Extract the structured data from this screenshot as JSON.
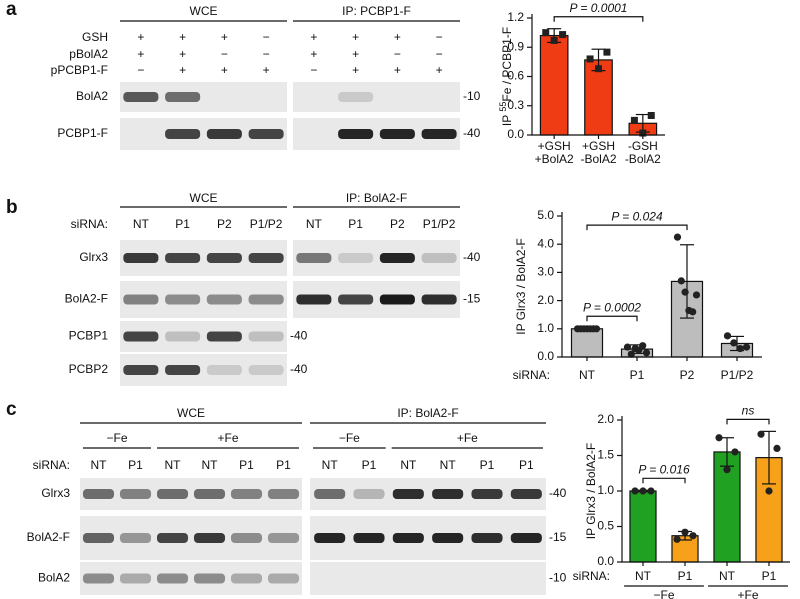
{
  "panels": [
    {
      "letter": "a",
      "headers": [
        "WCE",
        "IP: PCBP1-F"
      ],
      "condition_rows": [
        {
          "label": "GSH",
          "lanes": [
            "+",
            "+",
            "+",
            "−",
            "+",
            "+",
            "+",
            "−"
          ]
        },
        {
          "label": "pBolA2",
          "lanes": [
            "+",
            "+",
            "−",
            "−",
            "+",
            "+",
            "−",
            "−"
          ]
        },
        {
          "label": "pPCBP1-F",
          "lanes": [
            "−",
            "+",
            "+",
            "+",
            "−",
            "+",
            "+",
            "+"
          ]
        }
      ],
      "blots": [
        {
          "label": "BolA2",
          "marker": "-10"
        },
        {
          "label": "PCBP1-F",
          "marker": "-40"
        }
      ]
    },
    {
      "letter": "b",
      "headers": [
        "WCE",
        "IP: BolA2-F"
      ],
      "lane_label": "siRNA:",
      "lanes": [
        "NT",
        "P1",
        "P2",
        "P1/P2",
        "NT",
        "P1",
        "P2",
        "P1/P2"
      ],
      "blots": [
        {
          "label": "Glrx3",
          "marker": "-40"
        },
        {
          "label": "BolA2-F",
          "marker": "-15"
        },
        {
          "label": "PCBP1",
          "marker": "-40"
        },
        {
          "label": "PCBP2",
          "marker": "-40"
        }
      ]
    },
    {
      "letter": "c",
      "headers": [
        "WCE",
        "IP: BolA2-F"
      ],
      "subheaders": [
        "−Fe",
        "+Fe",
        "−Fe",
        "+Fe"
      ],
      "lane_label": "siRNA:",
      "lanes": [
        "NT",
        "P1",
        "NT",
        "NT",
        "P1",
        "P1",
        "NT",
        "P1",
        "NT",
        "NT",
        "P1",
        "P1"
      ],
      "blots": [
        {
          "label": "Glrx3",
          "marker": "-40"
        },
        {
          "label": "BolA2-F",
          "marker": "-15"
        },
        {
          "label": "BolA2",
          "marker": "-10"
        }
      ]
    }
  ],
  "chart_data": [
    {
      "type": "bar",
      "ylabel": {
        "prefix": "IP ",
        "superscript": "55",
        "suffix": "Fe / PCBP1-F"
      },
      "categories": [
        [
          "+GSH",
          "+BolA2"
        ],
        [
          "+GSH",
          "-BolA2"
        ],
        [
          "-GSH",
          "-BolA2"
        ]
      ],
      "values": [
        1.02,
        0.77,
        0.12
      ],
      "errors": [
        0.07,
        0.11,
        0.09
      ],
      "points": [
        [
          1.05,
          0.97,
          1.03
        ],
        [
          0.78,
          0.68,
          0.85
        ],
        [
          0.15,
          0.02,
          0.2
        ]
      ],
      "marker": "square",
      "color": "#f03c14",
      "ylim": [
        0,
        1.2
      ],
      "yticks": [
        {
          "value": 0,
          "label": "0.0"
        },
        0.3,
        0.6,
        0.9,
        1.2
      ],
      "annotations": [
        {
          "text": "P = 0.0001",
          "between": [
            0,
            2
          ]
        }
      ]
    },
    {
      "type": "bar",
      "ylabel": "IP Glrx3 / BolA2-F",
      "xlabel": "siRNA:",
      "categories": [
        "NT",
        "P1",
        "P2",
        "P1/P2"
      ],
      "values": [
        1.0,
        0.28,
        2.68,
        0.48
      ],
      "errors": [
        0.02,
        0.15,
        1.3,
        0.25
      ],
      "points": [
        [
          1.0,
          1.0,
          1.0,
          1.0,
          1.0,
          1.0,
          1.0
        ],
        [
          0.35,
          0.1,
          0.3,
          0.25,
          0.4,
          0.15
        ],
        [
          4.25,
          2.7,
          2.3,
          1.65,
          1.6,
          2.2
        ],
        [
          0.75,
          0.5,
          0.3,
          0.35
        ]
      ],
      "marker": "circle",
      "color": "#bdbdbd",
      "ylim": [
        0,
        5
      ],
      "yticks": [
        {
          "value": 0,
          "label": "0.0"
        },
        {
          "value": 1,
          "label": "1.0"
        },
        {
          "value": 2,
          "label": "2.0"
        },
        {
          "value": 3,
          "label": "3.0"
        },
        {
          "value": 4,
          "label": "4.0"
        },
        {
          "value": 5,
          "label": "5.0"
        }
      ],
      "annotations": [
        {
          "text": "P = 0.0002",
          "between": [
            0,
            1
          ]
        },
        {
          "text": "P = 0.024",
          "between": [
            0,
            2
          ]
        }
      ]
    },
    {
      "type": "bar",
      "ylabel": "IP Glrx3 / BolA2-F",
      "xlabel": "siRNA:",
      "categories": [
        "NT",
        "P1",
        "NT",
        "P1"
      ],
      "groups": [
        {
          "name": "−Fe",
          "categories": [
            0,
            1
          ]
        },
        {
          "name": "+Fe",
          "categories": [
            2,
            3
          ]
        }
      ],
      "values": [
        1.0,
        0.37,
        1.55,
        1.47
      ],
      "errors": [
        0.01,
        0.06,
        0.2,
        0.37
      ],
      "points": [
        [
          1.0,
          1.0,
          1.0
        ],
        [
          0.32,
          0.42,
          0.37
        ],
        [
          1.75,
          1.3,
          1.55
        ],
        [
          1.8,
          1.0,
          1.6
        ]
      ],
      "marker": "circle",
      "colors": [
        "#21a121",
        "#f7a11a",
        "#21a121",
        "#f7a11a"
      ],
      "ylim": [
        0,
        2
      ],
      "yticks": [
        {
          "value": 0,
          "label": "0.0"
        },
        0.5,
        {
          "value": 1,
          "label": "1.0"
        },
        1.5,
        {
          "value": 2,
          "label": "2.0"
        }
      ],
      "annotations": [
        {
          "text": "P = 0.016",
          "between": [
            0,
            1
          ]
        },
        {
          "text": "ns",
          "between": [
            2,
            3
          ]
        }
      ]
    }
  ]
}
